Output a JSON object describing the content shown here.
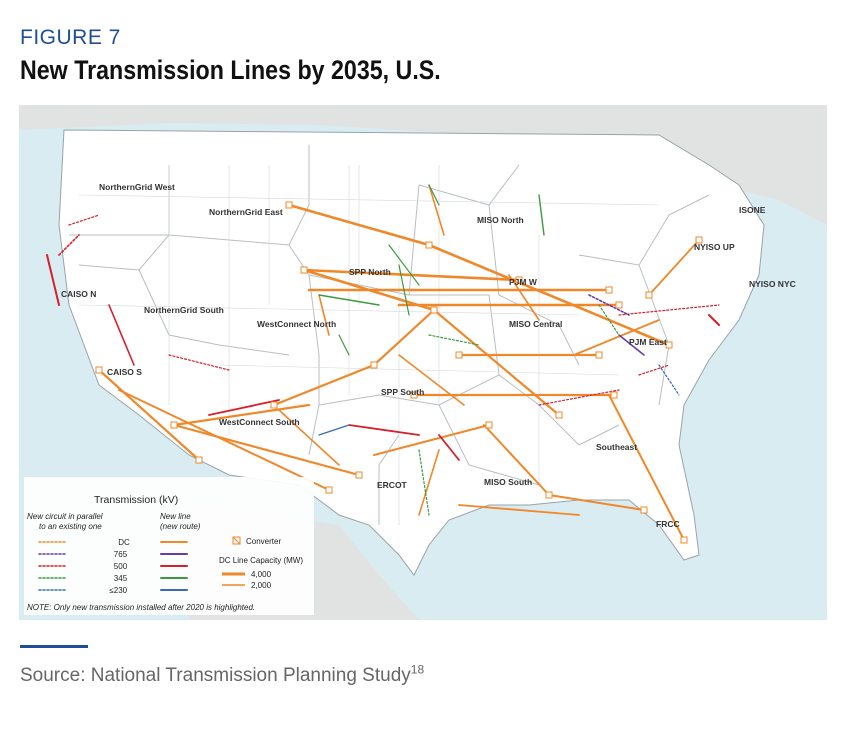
{
  "figure_label": "FIGURE 7",
  "title": "New Transmission Lines by 2035, U.S.",
  "source": {
    "text": "Source: National Transmission Planning Study",
    "footnote": "18"
  },
  "map": {
    "regions": [
      "NorthernGrid West",
      "NorthernGrid East",
      "NorthernGrid South",
      "CAISO N",
      "CAISO S",
      "WestConnect North",
      "WestConnect South",
      "SPP North",
      "SPP South",
      "MISO North",
      "MISO Central",
      "MISO South",
      "PJM W",
      "PJM East",
      "ISONE",
      "NYISO UP",
      "NYISO NYC",
      "ERCOT",
      "Southeast",
      "FRCC"
    ],
    "colors": {
      "dc": "#f0882a",
      "kv765": "#6a3aa6",
      "kv500": "#d6202a",
      "kv345": "#3f9a3f",
      "kv230": "#3a6ab8",
      "land": "#ffffff",
      "water": "#d8ecf2",
      "outside": "#e1e2e2"
    },
    "legend": {
      "title": "Transmission (kV)",
      "col_parallel": "New circuit in parallel",
      "col_parallel_2": "to an existing one",
      "col_new": "New line",
      "col_new_2": "(new route)",
      "rows": [
        "DC",
        "765",
        "500",
        "345",
        "≤230"
      ],
      "converter": "Converter",
      "dc_capacity_title": "DC Line Capacity (MW)",
      "dc_capacity": [
        "4,000",
        "2,000"
      ],
      "note": "NOTE: Only new transmission installed after 2020 is highlighted."
    }
  }
}
